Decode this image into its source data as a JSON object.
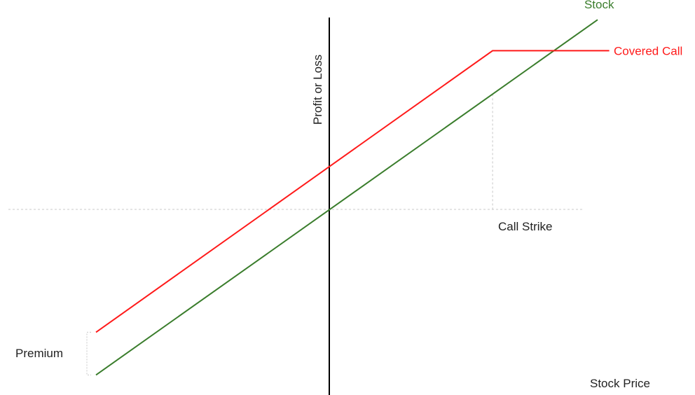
{
  "chart_data": {
    "type": "line",
    "title": "",
    "xlabel": "Stock Price",
    "ylabel": "Profit or Loss",
    "grid": false,
    "legend": "none",
    "x_range": [
      -10,
      12
    ],
    "y_range": [
      -8,
      8
    ],
    "call_strike": 7,
    "premium": 2,
    "series": [
      {
        "name": "Stock",
        "color": "#3a7d2c",
        "x": [
          -10,
          11.5
        ],
        "y": [
          -7.75,
          8.88
        ]
      },
      {
        "name": "Covered Call",
        "color": "#ff1a1a",
        "x": [
          -10,
          7,
          12
        ],
        "y": [
          -5.75,
          7.43,
          7.43
        ]
      }
    ],
    "annotations": [
      {
        "key": "strike",
        "text": "Call Strike"
      },
      {
        "key": "premium",
        "text": "Premium"
      }
    ]
  },
  "colors": {
    "axis": "#000000",
    "zero_line": "#c8c8c8",
    "text": "#222222"
  }
}
